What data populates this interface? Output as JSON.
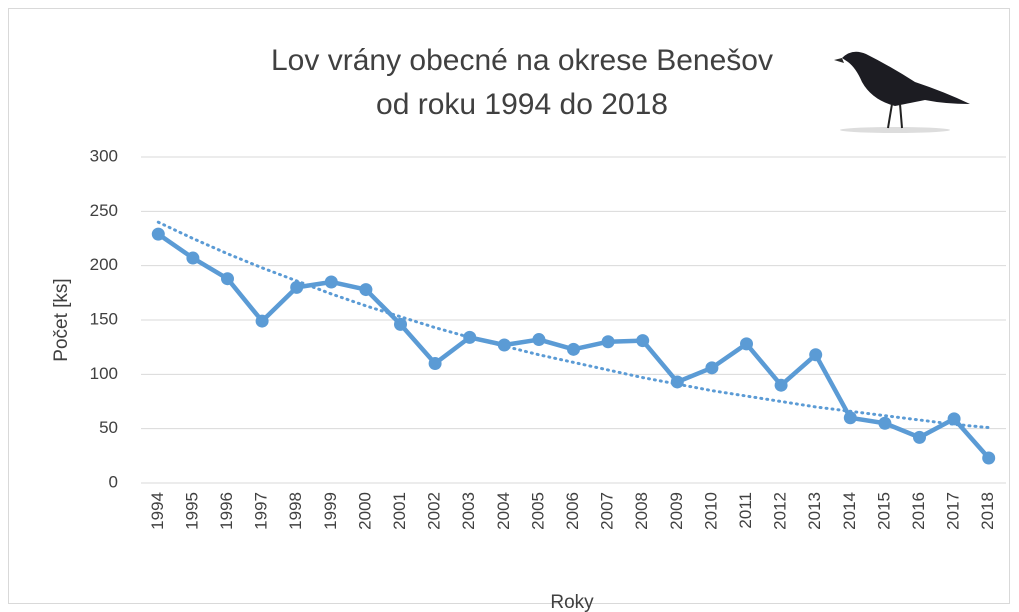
{
  "chart_data": {
    "type": "line",
    "title": [
      "Lov vrány obecné na okrese Benešov",
      "od roku 1994 do 2018"
    ],
    "x_label": "Roky",
    "y_label": "Počet [ks]",
    "categories": [
      "1994",
      "1995",
      "1996",
      "1997",
      "1998",
      "1999",
      "2000",
      "2001",
      "2002",
      "2003",
      "2004",
      "2005",
      "2006",
      "2007",
      "2008",
      "2009",
      "2010",
      "2011",
      "2012",
      "2013",
      "2014",
      "2015",
      "2016",
      "2017",
      "2018"
    ],
    "series": [
      {
        "color": "#5b9bd5",
        "values": [
          229,
          207,
          188,
          149,
          180,
          185,
          178,
          146,
          110,
          134,
          127,
          132,
          123,
          130,
          131,
          93,
          106,
          128,
          90,
          118,
          60,
          55,
          42,
          59,
          23
        ]
      }
    ],
    "trendline": {
      "color": "#5b9bd5",
      "style": "dotted",
      "values": [
        240,
        225,
        211,
        198,
        186,
        174,
        163,
        153,
        143,
        134,
        126,
        118,
        111,
        104,
        97,
        91,
        85,
        80,
        75,
        70,
        66,
        62,
        58,
        54,
        51
      ]
    },
    "ylim": [
      0,
      300
    ],
    "yticks": [
      0,
      50,
      100,
      150,
      200,
      250,
      300
    ],
    "grid": true
  }
}
